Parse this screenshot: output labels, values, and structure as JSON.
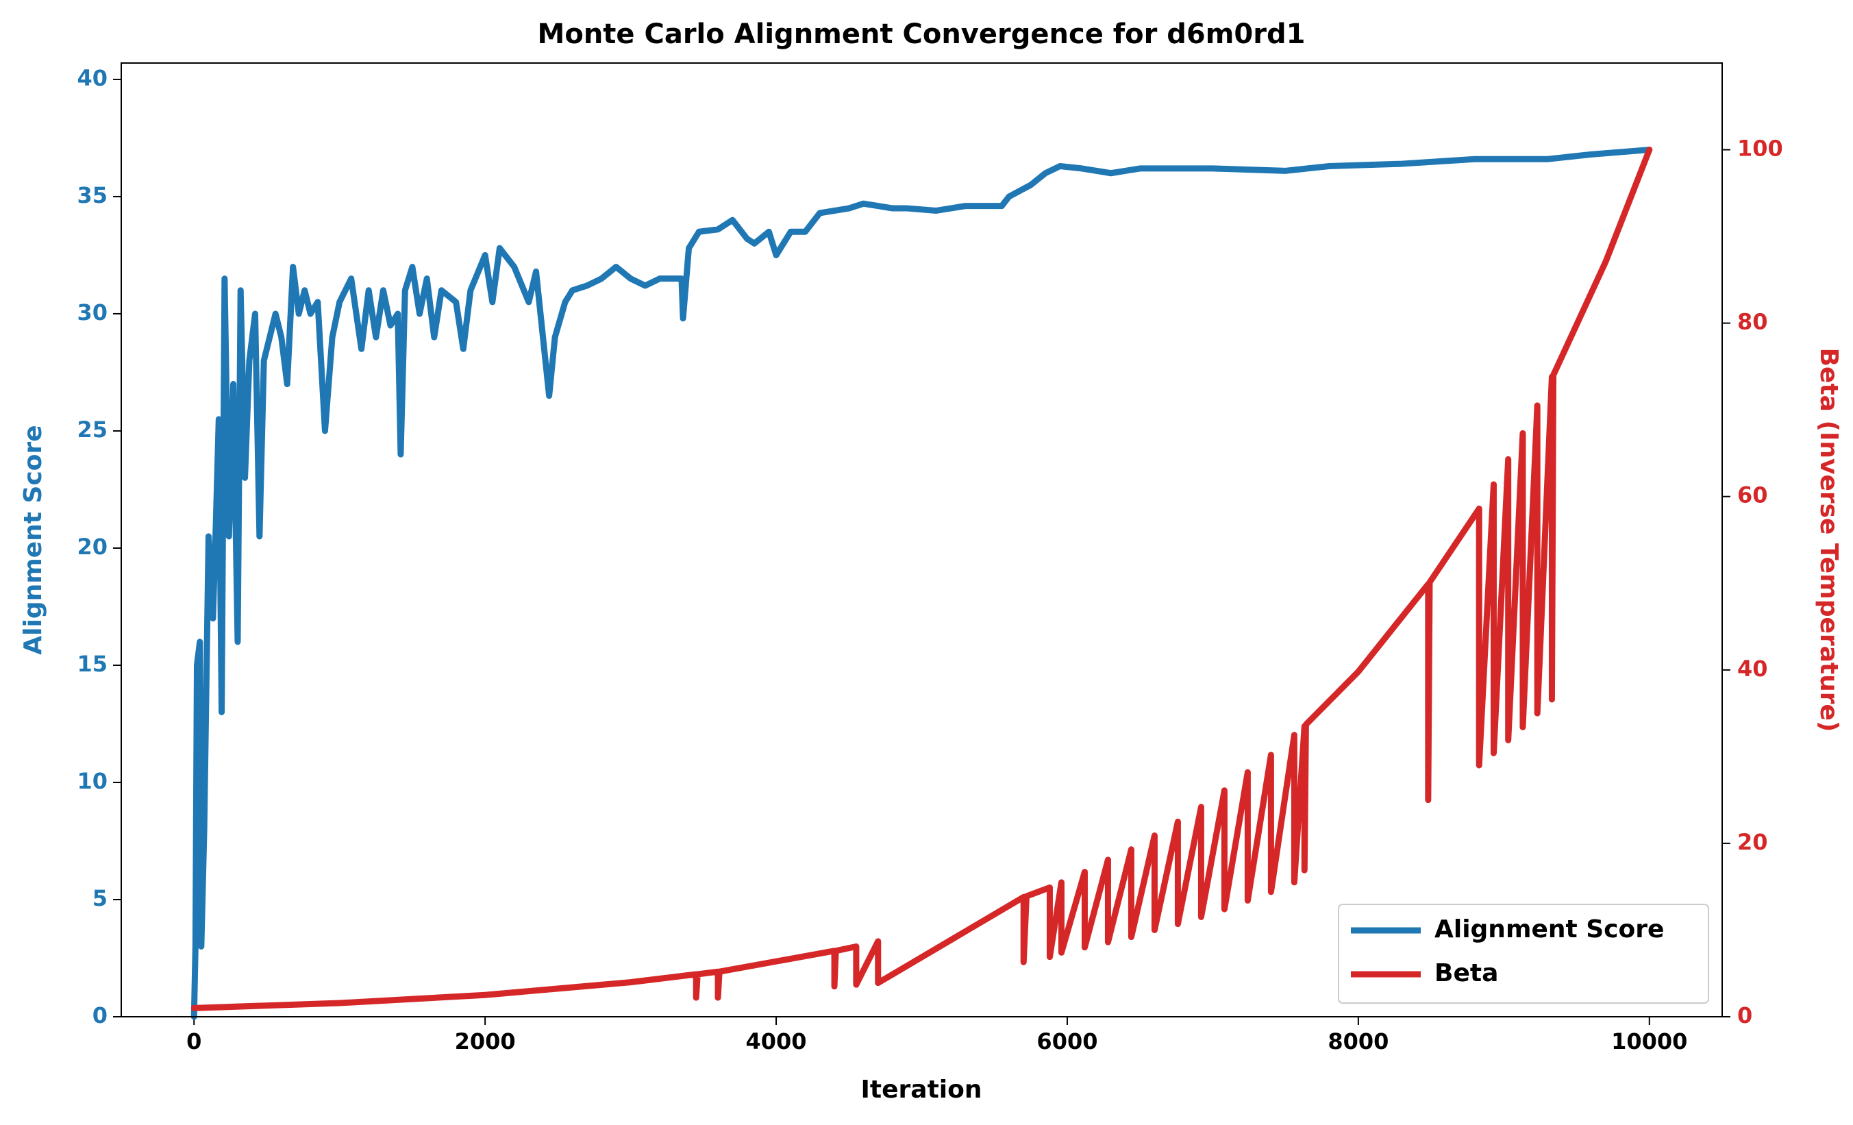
{
  "chart_data": {
    "type": "line",
    "title": "Monte Carlo Alignment Convergence for d6m0rd1",
    "x_label": "Iteration",
    "y_label": "Alignment Score",
    "y2_label": "Beta (Inverse Temperature)",
    "xlim": [
      -500,
      10500
    ],
    "xticks": [
      0,
      2000,
      4000,
      6000,
      8000,
      10000
    ],
    "ylim": [
      0,
      40.7
    ],
    "yticks": [
      0,
      5,
      10,
      15,
      20,
      25,
      30,
      35,
      40
    ],
    "y2lim": [
      0,
      110
    ],
    "y2ticks": [
      0,
      20,
      40,
      60,
      80,
      100
    ],
    "legend": "lower right",
    "series": [
      {
        "name": "Alignment Score",
        "color": "#1f77b4",
        "axis": "y",
        "x": [
          0,
          10,
          20,
          40,
          50,
          70,
          100,
          130,
          150,
          170,
          190,
          210,
          240,
          270,
          300,
          320,
          350,
          380,
          420,
          450,
          480,
          520,
          560,
          600,
          640,
          680,
          720,
          760,
          800,
          850,
          900,
          950,
          1000,
          1080,
          1150,
          1200,
          1250,
          1300,
          1350,
          1400,
          1420,
          1450,
          1500,
          1550,
          1600,
          1650,
          1700,
          1800,
          1850,
          1900,
          2000,
          2050,
          2100,
          2200,
          2300,
          2350,
          2440,
          2480,
          2550,
          2600,
          2700,
          2800,
          2900,
          3000,
          3100,
          3200,
          3350,
          3360,
          3400,
          3470,
          3600,
          3700,
          3800,
          3850,
          3950,
          4000,
          4100,
          4200,
          4300,
          4500,
          4600,
          4800,
          4900,
          5100,
          5300,
          5550,
          5600,
          5750,
          5850,
          5950,
          6100,
          6300,
          6500,
          7000,
          7500,
          7800,
          8300,
          8800,
          9300,
          9600,
          10000
        ],
        "values": [
          0,
          3,
          15,
          16,
          3,
          8,
          20.5,
          17,
          21,
          25.5,
          13,
          31.5,
          20.5,
          27,
          16,
          31,
          23,
          28,
          30,
          20.5,
          28,
          29,
          30,
          29,
          27,
          32,
          30,
          31,
          30,
          30.5,
          25,
          29,
          30.5,
          31.5,
          28.5,
          31,
          29,
          31,
          29.5,
          30,
          24,
          31,
          32,
          30,
          31.5,
          29,
          31,
          30.5,
          28.5,
          31,
          32.5,
          30.5,
          32.8,
          32,
          30.5,
          31.8,
          26.5,
          29,
          30.5,
          31,
          31.2,
          31.5,
          32,
          31.5,
          31.2,
          31.5,
          31.5,
          29.8,
          32.8,
          33.5,
          33.6,
          34,
          33.2,
          33,
          33.5,
          32.5,
          33.5,
          33.5,
          34.3,
          34.5,
          34.7,
          34.5,
          34.5,
          34.4,
          34.6,
          34.6,
          35,
          35.5,
          36,
          36.3,
          36.2,
          36,
          36.2,
          36.2,
          36.1,
          36.3,
          36.4,
          36.6,
          36.6,
          36.8,
          37
        ]
      },
      {
        "name": "Beta",
        "color": "#d62728",
        "axis": "y2",
        "x": [
          0,
          1000,
          2000,
          3000,
          3450,
          3450,
          3460,
          3600,
          3600,
          3610,
          4400,
          4400,
          4410,
          4550,
          4550,
          4700,
          4700,
          5700,
          5700,
          5720,
          5880,
          5880,
          5960,
          5960,
          6120,
          6120,
          6280,
          6280,
          6440,
          6440,
          6600,
          6600,
          6760,
          6760,
          6920,
          6920,
          7080,
          7080,
          7240,
          7240,
          7400,
          7400,
          7560,
          7560,
          7630,
          7630,
          7640,
          8000,
          8480,
          8480,
          8490,
          8830,
          8830,
          8930,
          8930,
          9030,
          9030,
          9130,
          9130,
          9230,
          9230,
          9330,
          9330,
          9340,
          9700,
          10000
        ],
        "values": [
          1,
          1.58,
          2.51,
          3.98,
          4.9,
          2.2,
          4.9,
          5.2,
          2.2,
          5.2,
          7.6,
          3.5,
          7.6,
          8.1,
          3.7,
          8.7,
          3.9,
          13.8,
          6.3,
          13.9,
          14.9,
          6.9,
          15.5,
          7.4,
          16.7,
          8.0,
          18.1,
          8.6,
          19.3,
          9.2,
          20.9,
          10.0,
          22.5,
          10.7,
          24.2,
          11.5,
          26.1,
          12.4,
          28.2,
          13.4,
          30.2,
          14.4,
          32.5,
          15.5,
          33.5,
          16.9,
          33.7,
          39.8,
          49.9,
          25,
          50.1,
          58.6,
          29,
          61.4,
          30.4,
          64.3,
          31.9,
          67.3,
          33.4,
          70.5,
          35,
          73.8,
          36.6,
          74,
          87.1,
          100
        ]
      }
    ]
  }
}
